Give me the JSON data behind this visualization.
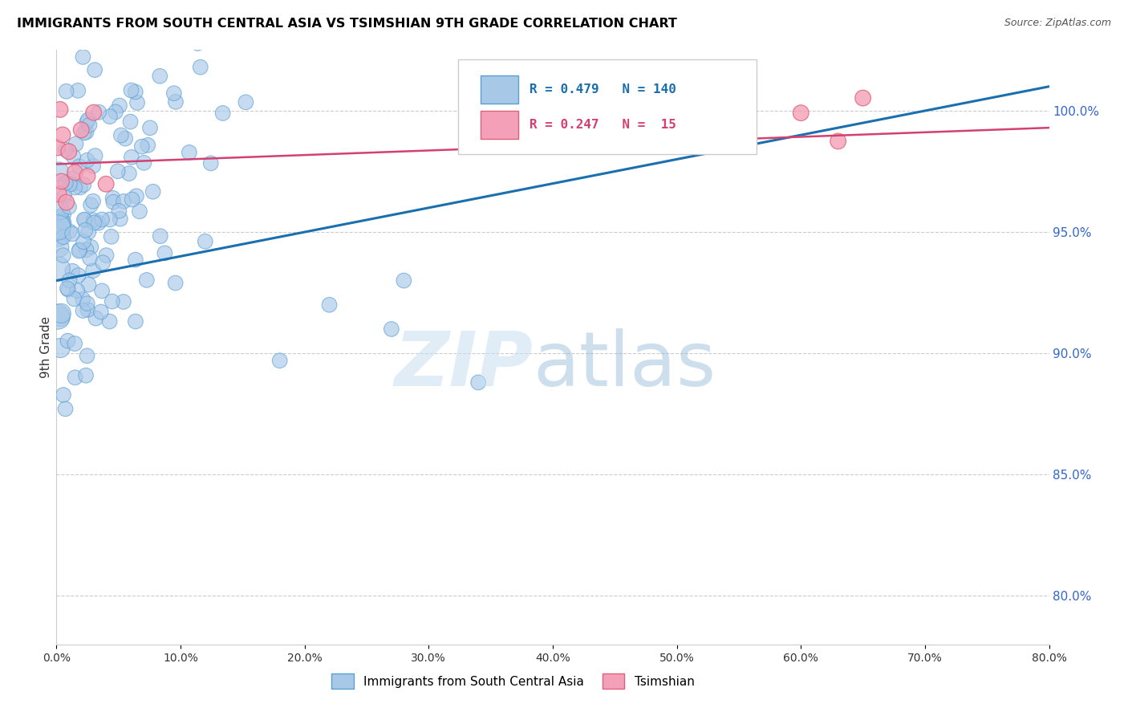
{
  "title": "IMMIGRANTS FROM SOUTH CENTRAL ASIA VS TSIMSHIAN 9TH GRADE CORRELATION CHART",
  "source": "Source: ZipAtlas.com",
  "ylabel": "9th Grade",
  "ylabel_right_ticks": [
    "100.0%",
    "95.0%",
    "90.0%",
    "85.0%",
    "80.0%"
  ],
  "ylabel_right_positions": [
    1.0,
    0.95,
    0.9,
    0.85,
    0.8
  ],
  "legend_label1": "Immigrants from South Central Asia",
  "legend_label2": "Tsimshian",
  "blue_color": "#a8c8e8",
  "blue_edge_color": "#5a9fd4",
  "blue_line_color": "#1a6faf",
  "pink_color": "#f4a0b8",
  "pink_edge_color": "#e0607a",
  "pink_line_color": "#d44070",
  "xmin": 0.0,
  "xmax": 0.8,
  "ymin": 0.78,
  "ymax": 1.025,
  "blue_trend_x0": 0.0,
  "blue_trend_y0": 0.93,
  "blue_trend_x1": 0.8,
  "blue_trend_y1": 1.01,
  "pink_trend_x0": 0.0,
  "pink_trend_y0": 0.978,
  "pink_trend_x1": 0.8,
  "pink_trend_y1": 0.993
}
